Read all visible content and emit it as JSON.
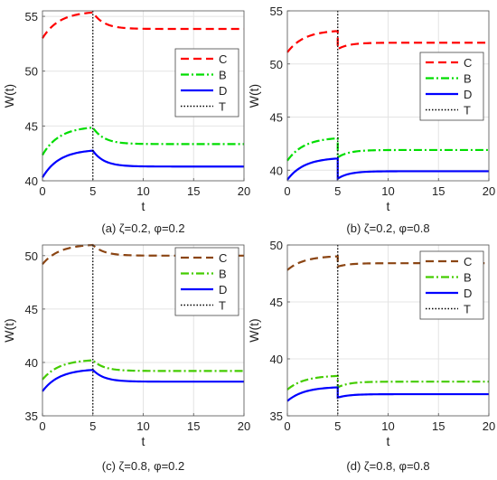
{
  "chart_data": [
    {
      "type": "line",
      "caption": "(a) ζ=0.2, φ=0.2",
      "xlabel": "t",
      "ylabel": "W(t)",
      "xlim": [
        0,
        20
      ],
      "ylim": [
        40,
        55.5
      ],
      "xticks": [
        0,
        5,
        10,
        15,
        20
      ],
      "yticks": [
        40,
        45,
        50,
        55
      ],
      "grid": true,
      "legend_position": "right",
      "switch_time": 5,
      "series": [
        {
          "name": "C",
          "color": "#ff0000",
          "style": "dashed",
          "start": 53.0,
          "peak": 55.35,
          "end": 53.85
        },
        {
          "name": "B",
          "color": "#00dd00",
          "style": "dashdot",
          "start": 42.35,
          "peak": 44.85,
          "end": 43.35
        },
        {
          "name": "D",
          "color": "#0000ff",
          "style": "solid",
          "start": 40.3,
          "peak": 42.75,
          "end": 41.3
        },
        {
          "name": "T",
          "color": "#000000",
          "style": "dotted",
          "x": 5
        }
      ]
    },
    {
      "type": "line",
      "caption": "(b) ζ=0.2, φ=0.8",
      "xlabel": "t",
      "ylabel": "W(t)",
      "xlim": [
        0,
        20
      ],
      "ylim": [
        39,
        55
      ],
      "xticks": [
        0,
        5,
        10,
        15,
        20
      ],
      "yticks": [
        40,
        45,
        50,
        55
      ],
      "grid": true,
      "legend_position": "right",
      "switch_time": 5,
      "series": [
        {
          "name": "C",
          "color": "#ff0000",
          "style": "dashed",
          "start": 51.1,
          "peak": 53.1,
          "drop": 51.4,
          "end": 52.0
        },
        {
          "name": "B",
          "color": "#00dd00",
          "style": "dashdot",
          "start": 40.9,
          "peak": 43.0,
          "drop": 41.2,
          "end": 41.9
        },
        {
          "name": "D",
          "color": "#0000ff",
          "style": "solid",
          "start": 39.1,
          "peak": 41.1,
          "drop": 39.2,
          "end": 39.9
        },
        {
          "name": "T",
          "color": "#000000",
          "style": "dotted",
          "x": 5
        }
      ]
    },
    {
      "type": "line",
      "caption": "(c) ζ=0.8, φ=0.2",
      "xlabel": "t",
      "ylabel": "W(t)",
      "xlim": [
        0,
        20
      ],
      "ylim": [
        35,
        51
      ],
      "xticks": [
        0,
        5,
        10,
        15,
        20
      ],
      "yticks": [
        35,
        40,
        45,
        50
      ],
      "grid": true,
      "legend_position": "right",
      "switch_time": 5,
      "series": [
        {
          "name": "C",
          "color": "#8b4513",
          "style": "dashed",
          "start": 49.2,
          "peak": 51.0,
          "end": 50.0
        },
        {
          "name": "B",
          "color": "#44cc00",
          "style": "dashdot",
          "start": 38.4,
          "peak": 40.2,
          "end": 39.2
        },
        {
          "name": "D",
          "color": "#0000ff",
          "style": "solid",
          "start": 37.3,
          "peak": 39.3,
          "end": 38.2
        },
        {
          "name": "T",
          "color": "#000000",
          "style": "dotted",
          "x": 5
        }
      ]
    },
    {
      "type": "line",
      "caption": "(d) ζ=0.8, φ=0.8",
      "xlabel": "t",
      "ylabel": "W(t)",
      "xlim": [
        0,
        20
      ],
      "ylim": [
        35,
        50
      ],
      "xticks": [
        0,
        5,
        10,
        15,
        20
      ],
      "yticks": [
        35,
        40,
        45,
        50
      ],
      "grid": true,
      "legend_position": "right",
      "switch_time": 5,
      "series": [
        {
          "name": "C",
          "color": "#8b4513",
          "style": "dashed",
          "start": 47.8,
          "peak": 49.0,
          "drop": 48.1,
          "end": 48.4
        },
        {
          "name": "B",
          "color": "#44cc00",
          "style": "dashdot",
          "start": 37.3,
          "peak": 38.5,
          "drop": 37.5,
          "end": 38.0
        },
        {
          "name": "D",
          "color": "#0000ff",
          "style": "solid",
          "start": 36.3,
          "peak": 37.5,
          "drop": 36.6,
          "end": 36.9
        },
        {
          "name": "T",
          "color": "#000000",
          "style": "dotted",
          "x": 5
        }
      ]
    }
  ]
}
